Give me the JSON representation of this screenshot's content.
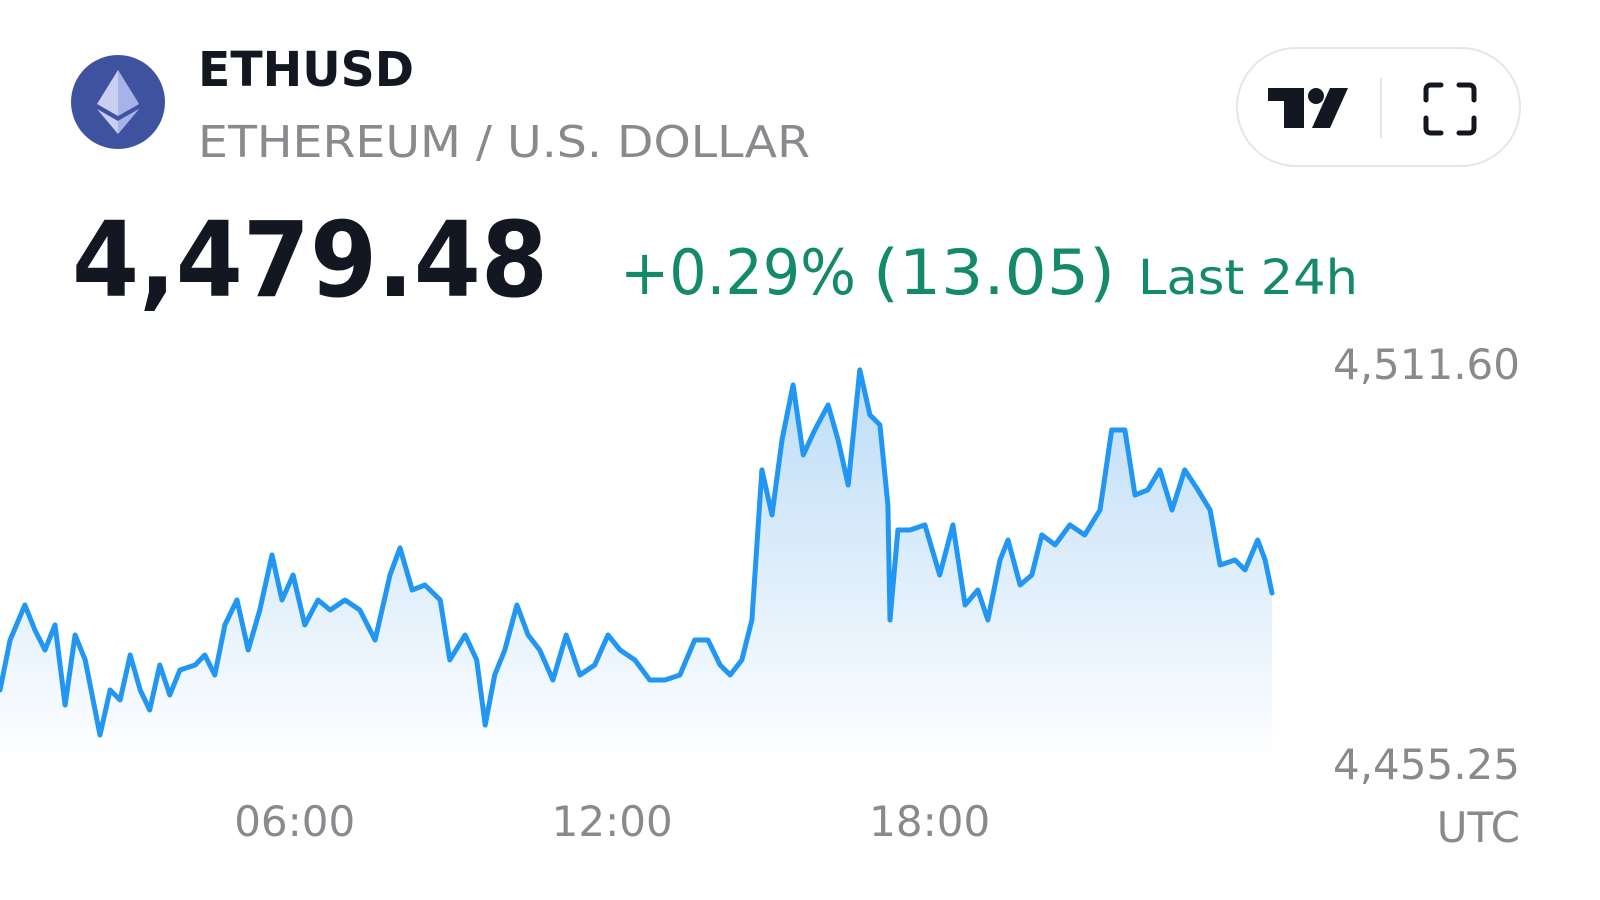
{
  "header": {
    "symbol": "ETHUSD",
    "name": "ETHEREUM / U.S. DOLLAR",
    "price": "4,479.48",
    "change_percent": "+0.29%",
    "change": "(13.05)",
    "period": "Last 24h"
  },
  "chart_data": {
    "type": "area",
    "color": "#2196f3",
    "timezone": "UTC",
    "xlim": [
      0.43,
      24.47
    ],
    "xticks": [
      {
        "value": 6,
        "label": "06:00"
      },
      {
        "value": 12,
        "label": "12:00"
      },
      {
        "value": 18,
        "label": "18:00"
      }
    ],
    "ylim": [
      4455.25,
      4511.6
    ],
    "yticks": [
      {
        "value": 4455.25,
        "label": "4,455.25"
      },
      {
        "value": 4511.6,
        "label": "4,511.60"
      }
    ],
    "grid": false,
    "series": [
      {
        "name": "ETHUSD",
        "color": "#2196f3",
        "x": [
          0.43,
          0.62,
          0.9,
          1.09,
          1.28,
          1.47,
          1.66,
          1.85,
          2.04,
          2.32,
          2.51,
          2.7,
          2.89,
          3.08,
          3.26,
          3.45,
          3.64,
          3.83,
          4.12,
          4.3,
          4.49,
          4.68,
          4.91,
          5.12,
          5.34,
          5.57,
          5.76,
          5.97,
          6.19,
          6.44,
          6.67,
          6.95,
          7.23,
          7.52,
          7.8,
          7.99,
          8.22,
          8.46,
          8.75,
          8.93,
          9.22,
          9.44,
          9.6,
          9.78,
          9.97,
          10.2,
          10.41,
          10.63,
          10.88,
          11.13,
          11.39,
          11.67,
          11.92,
          12.15,
          12.43,
          12.71,
          13.0,
          13.28,
          13.56,
          13.81,
          14.04,
          14.23,
          14.45,
          14.64,
          14.83,
          15.02,
          15.21,
          15.42,
          15.61,
          15.83,
          16.08,
          16.27,
          16.46,
          16.68,
          16.87,
          17.06,
          17.21,
          17.25,
          17.4,
          17.63,
          17.91,
          18.19,
          18.44,
          18.67,
          18.91,
          19.1,
          19.33,
          19.48,
          19.71,
          19.93,
          20.12,
          20.37,
          20.65,
          20.93,
          21.22,
          21.44,
          21.69,
          21.88,
          22.12,
          22.35,
          22.58,
          22.82,
          23.07,
          23.3,
          23.49,
          23.77,
          23.96,
          24.2,
          24.34,
          24.47
        ],
        "values": [
          4465.82,
          4472.86,
          4477.79,
          4474.27,
          4471.45,
          4474.98,
          4463.7,
          4473.57,
          4470.04,
          4459.48,
          4465.82,
          4464.41,
          4470.75,
          4465.82,
          4463.0,
          4469.34,
          4465.11,
          4468.64,
          4469.34,
          4470.75,
          4467.93,
          4474.98,
          4478.5,
          4471.45,
          4477.09,
          4484.84,
          4478.5,
          4482.02,
          4474.98,
          4478.5,
          4477.09,
          4478.5,
          4477.09,
          4472.86,
          4482.02,
          4485.83,
          4479.91,
          4480.61,
          4478.5,
          4470.04,
          4473.57,
          4470.04,
          4460.89,
          4467.93,
          4471.45,
          4477.79,
          4473.57,
          4471.45,
          4467.23,
          4473.57,
          4467.93,
          4469.34,
          4473.57,
          4471.45,
          4470.04,
          4467.23,
          4467.23,
          4467.93,
          4472.86,
          4472.86,
          4469.34,
          4467.93,
          4470.04,
          4475.68,
          4496.82,
          4490.48,
          4501.04,
          4508.79,
          4498.93,
          4502.45,
          4505.97,
          4501.04,
          4494.7,
          4510.91,
          4504.57,
          4503.16,
          4491.88,
          4475.68,
          4488.36,
          4488.36,
          4489.07,
          4482.02,
          4489.07,
          4477.79,
          4479.91,
          4475.68,
          4484.13,
          4486.95,
          4480.61,
          4482.02,
          4487.66,
          4486.25,
          4489.07,
          4487.66,
          4491.18,
          4502.45,
          4502.45,
          4493.29,
          4494.0,
          4496.82,
          4491.18,
          4496.82,
          4494.0,
          4491.18,
          4483.43,
          4484.13,
          4482.73,
          4486.95,
          4484.13,
          4479.48
        ]
      }
    ]
  }
}
